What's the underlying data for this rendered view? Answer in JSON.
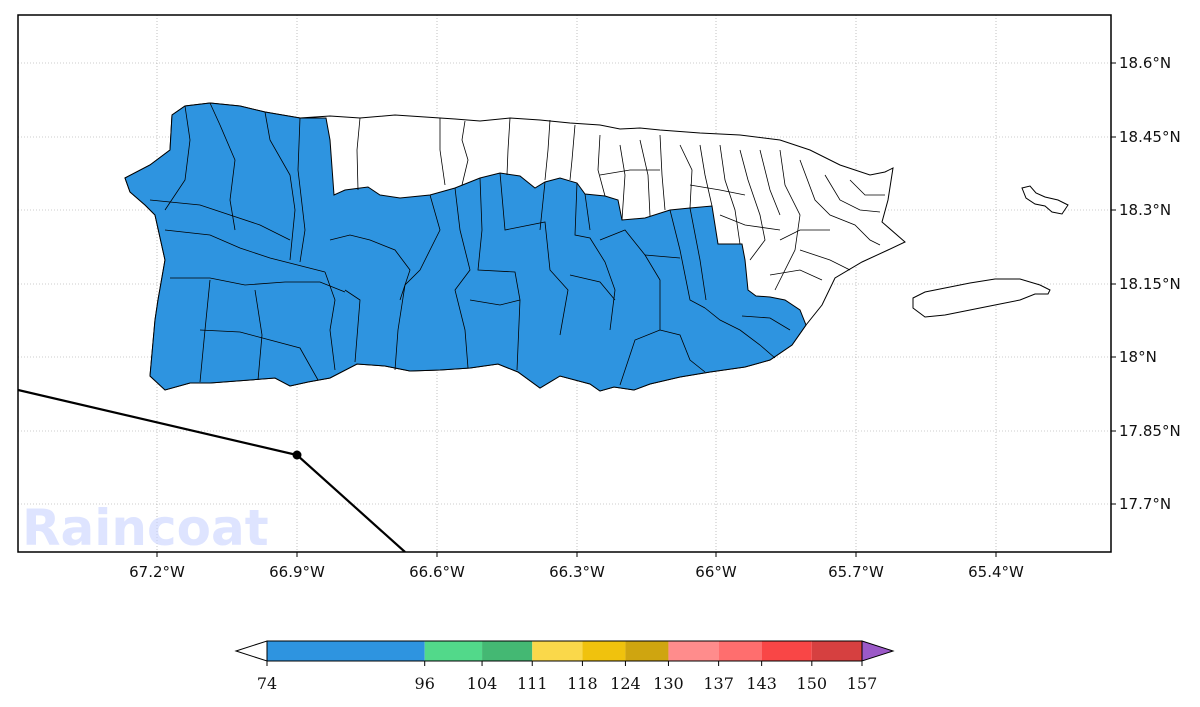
{
  "map": {
    "lon_labels": [
      "67.2°W",
      "66.9°W",
      "66.6°W",
      "66.3°W",
      "66°W",
      "65.7°W",
      "65.4°W"
    ],
    "lat_labels": [
      "18.6°N",
      "18.45°N",
      "18.3°N",
      "18.15°N",
      "18°N",
      "17.85°N",
      "17.7°N"
    ],
    "fill_color_shaded": "#2e94e0",
    "fill_color_unshaded": "#ffffff",
    "border_color": "#000000",
    "track_color": "#000000",
    "region": "Puerto Rico municipalities"
  },
  "colorbar": {
    "ticks": [
      "74",
      "96",
      "104",
      "111",
      "118",
      "124",
      "130",
      "137",
      "143",
      "150",
      "157"
    ],
    "colors": [
      "#2e94e0",
      "#52d98a",
      "#44b873",
      "#fad84a",
      "#f0c20d",
      "#cfa510",
      "#ff8c8c",
      "#ff6e6e",
      "#f94646",
      "#d64040"
    ],
    "under_color": "#ffffff",
    "over_color": "#9b59c7"
  },
  "watermark": {
    "text": "Raincoat"
  }
}
